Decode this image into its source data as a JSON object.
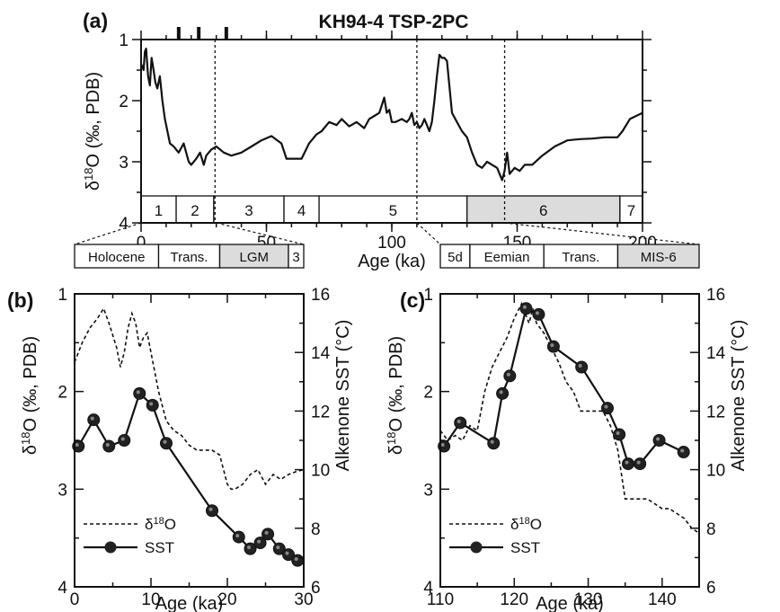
{
  "title": "KH94-4 TSP-2PC",
  "panels": [
    {
      "id": "a",
      "label": "(a)"
    },
    {
      "id": "b",
      "label": "(b)"
    },
    {
      "id": "c",
      "label": "(c)"
    }
  ],
  "chart_data": [
    {
      "panel": "(a)",
      "type": "line",
      "title": "KH94-4 TSP-2PC",
      "xlabel": "Age (ka)",
      "ylabel": "δ18O (‰, PDB)",
      "xlim": [
        0,
        200
      ],
      "ylim": [
        4,
        1
      ],
      "y_reversed": true,
      "xticks": [
        0,
        50,
        100,
        150,
        200
      ],
      "yticks": [
        1,
        2,
        3,
        4
      ],
      "series": [
        {
          "name": "δ18O",
          "style": "solid",
          "x": [
            0,
            1,
            1.5,
            2,
            2.8,
            3.5,
            4.2,
            5,
            5.7,
            6.5,
            7.5,
            8.5,
            9.5,
            10.5,
            11.5,
            13,
            15,
            17,
            19,
            20,
            22,
            23.5,
            25,
            26,
            28,
            30,
            33,
            36,
            40,
            44,
            48,
            52,
            56,
            58,
            61,
            64,
            67,
            70,
            72,
            75,
            78,
            80,
            83,
            86,
            89,
            91,
            93,
            95,
            97,
            98,
            99,
            100,
            101.5,
            104,
            106,
            107,
            108,
            109,
            110,
            111,
            112,
            113,
            114,
            115,
            116,
            117,
            118,
            119,
            120,
            121,
            122,
            124,
            126,
            128,
            130,
            132,
            134,
            136,
            138,
            140,
            142,
            144,
            145,
            146,
            147,
            149,
            151,
            153,
            156,
            160,
            165,
            170,
            175,
            180,
            185,
            190,
            192,
            195,
            200
          ],
          "y": [
            1.4,
            1.5,
            1.2,
            1.15,
            1.6,
            1.75,
            1.3,
            1.5,
            1.7,
            1.8,
            1.6,
            2.0,
            2.3,
            2.5,
            2.7,
            2.75,
            2.85,
            2.7,
            3.0,
            3.05,
            2.95,
            2.85,
            3.05,
            2.9,
            2.8,
            2.75,
            2.85,
            2.9,
            2.85,
            2.75,
            2.65,
            2.58,
            2.7,
            2.95,
            2.95,
            2.95,
            2.7,
            2.55,
            2.5,
            2.35,
            2.4,
            2.3,
            2.42,
            2.35,
            2.45,
            2.3,
            2.25,
            2.2,
            1.95,
            2.2,
            2.15,
            2.35,
            2.35,
            2.3,
            2.35,
            2.3,
            2.2,
            2.4,
            2.35,
            2.45,
            2.4,
            2.3,
            2.4,
            2.5,
            2.35,
            2.0,
            1.6,
            1.25,
            1.3,
            1.3,
            1.35,
            2.2,
            2.35,
            2.5,
            2.6,
            2.85,
            3.05,
            3.1,
            3.0,
            3.05,
            3.1,
            3.3,
            3.15,
            2.85,
            3.2,
            3.1,
            3.15,
            3.05,
            3.05,
            2.9,
            2.75,
            2.65,
            2.63,
            2.62,
            2.6,
            2.6,
            2.5,
            2.3,
            2.2
          ]
        }
      ],
      "ticks_top": [
        15,
        23,
        34
      ],
      "marker_lines_x": [
        29.5,
        110,
        145
      ],
      "stages": [
        {
          "label": "1",
          "x0": 0,
          "x1": 14,
          "shaded": false
        },
        {
          "label": "2",
          "x0": 14,
          "x1": 29,
          "shaded": false
        },
        {
          "label": "3",
          "x0": 29,
          "x1": 57,
          "shaded": false
        },
        {
          "label": "4",
          "x0": 57,
          "x1": 71,
          "shaded": false
        },
        {
          "label": "5",
          "x0": 71,
          "x1": 130,
          "shaded": false
        },
        {
          "label": "6",
          "x0": 130,
          "x1": 191,
          "shaded": true
        },
        {
          "label": "7",
          "x0": 191,
          "x1": 200,
          "shaded": false
        }
      ]
    },
    {
      "panel": "(b)",
      "type": "line",
      "xlabel": "Age (ka)",
      "ylabel": "δ18O (‰, PDB)",
      "ylabel_right": "Alkenone SST (°C)",
      "xlim": [
        0,
        30
      ],
      "ylim": [
        4,
        1
      ],
      "y_reversed": true,
      "ylim_right": [
        6,
        16
      ],
      "xticks": [
        0,
        10,
        20,
        30
      ],
      "yticks": [
        1,
        2,
        3,
        4
      ],
      "yticks_right": [
        6,
        8,
        10,
        12,
        14,
        16
      ],
      "legend": [
        "δ18O",
        "SST"
      ],
      "legend_position": "bottom-left",
      "stages": [
        {
          "label": "Holocene",
          "x0": 0,
          "x1": 11,
          "shaded": false
        },
        {
          "label": "Trans.",
          "x0": 11,
          "x1": 19,
          "shaded": false
        },
        {
          "label": "LGM",
          "x0": 19,
          "x1": 28,
          "shaded": true
        },
        {
          "label": "3",
          "x0": 28,
          "x1": 30,
          "shaded": false
        }
      ],
      "series": [
        {
          "name": "δ18O",
          "style": "dashed",
          "axis": "left",
          "x": [
            0,
            1,
            2,
            3,
            3.8,
            4.5,
            5.5,
            6,
            6.5,
            7,
            7.5,
            8,
            8.5,
            9,
            9.5,
            10,
            11,
            12,
            13,
            14,
            15,
            16,
            17,
            18,
            19,
            20,
            20.5,
            21,
            22,
            23,
            24,
            25,
            26,
            27,
            28,
            29,
            30
          ],
          "y": [
            1.7,
            1.5,
            1.35,
            1.25,
            1.15,
            1.3,
            1.55,
            1.75,
            1.6,
            1.35,
            1.2,
            1.3,
            1.55,
            1.45,
            1.4,
            1.6,
            2.0,
            2.3,
            2.4,
            2.45,
            2.55,
            2.6,
            2.6,
            2.6,
            2.65,
            2.95,
            3.0,
            3.0,
            2.95,
            2.85,
            2.8,
            2.95,
            2.85,
            2.9,
            2.85,
            2.82,
            2.8
          ]
        },
        {
          "name": "SST",
          "style": "solid-markers",
          "axis": "right",
          "x": [
            0.5,
            2.5,
            4.5,
            6.5,
            8.5,
            10.2,
            12,
            18,
            21.5,
            23,
            24.3,
            25.3,
            26.8,
            28,
            29.2
          ],
          "y": [
            10.8,
            11.7,
            10.8,
            11.0,
            12.6,
            12.2,
            10.9,
            8.6,
            7.7,
            7.3,
            7.5,
            7.8,
            7.3,
            7.1,
            6.9
          ]
        }
      ]
    },
    {
      "panel": "(c)",
      "type": "line",
      "xlabel": "Age (ka)",
      "ylabel": "δ18O (‰, PDB)",
      "ylabel_right": "Alkenone SST (°C)",
      "xlim": [
        110,
        145
      ],
      "ylim": [
        4,
        1
      ],
      "y_reversed": true,
      "ylim_right": [
        6,
        16
      ],
      "xticks": [
        110,
        120,
        130,
        140
      ],
      "yticks": [
        1,
        2,
        3,
        4
      ],
      "yticks_right": [
        6,
        8,
        10,
        12,
        14,
        16
      ],
      "legend": [
        "δ18O",
        "SST"
      ],
      "legend_position": "bottom-left",
      "stages": [
        {
          "label": "5d",
          "x0": 110,
          "x1": 114,
          "shaded": false
        },
        {
          "label": "Eemian",
          "x0": 114,
          "x1": 124,
          "shaded": false
        },
        {
          "label": "Trans.",
          "x0": 124,
          "x1": 134,
          "shaded": false
        },
        {
          "label": "MIS-6",
          "x0": 134,
          "x1": 145,
          "shaded": true
        }
      ],
      "series": [
        {
          "name": "δ18O",
          "style": "dashed",
          "axis": "left",
          "x": [
            110,
            111,
            112,
            113,
            114,
            115,
            116,
            117,
            118,
            119,
            120,
            121,
            121.5,
            122,
            122.5,
            123,
            124,
            126,
            127,
            128,
            129,
            130,
            131,
            132,
            133,
            134,
            135,
            136,
            137,
            138,
            139,
            140,
            141,
            142,
            143,
            144,
            145
          ],
          "y": [
            2.4,
            2.5,
            2.45,
            2.5,
            2.35,
            2.4,
            2.0,
            1.75,
            1.6,
            1.45,
            1.25,
            1.1,
            1.2,
            1.3,
            1.15,
            1.3,
            1.4,
            1.7,
            1.9,
            2.0,
            2.2,
            2.2,
            2.2,
            2.2,
            2.35,
            2.6,
            3.1,
            3.1,
            3.1,
            3.1,
            3.15,
            3.2,
            3.2,
            3.25,
            3.3,
            3.4,
            3.45
          ]
        },
        {
          "name": "SST",
          "style": "solid-markers",
          "axis": "right",
          "x": [
            110.5,
            112.7,
            117.2,
            118.4,
            119.4,
            121.6,
            123.3,
            125.3,
            129.1,
            132.6,
            134.2,
            135.4,
            137,
            139.6,
            142.9
          ],
          "y": [
            10.8,
            11.6,
            10.9,
            12.6,
            13.2,
            15.5,
            15.3,
            14.2,
            13.5,
            12.1,
            11.2,
            10.2,
            10.2,
            11.0,
            10.6
          ]
        }
      ]
    }
  ]
}
